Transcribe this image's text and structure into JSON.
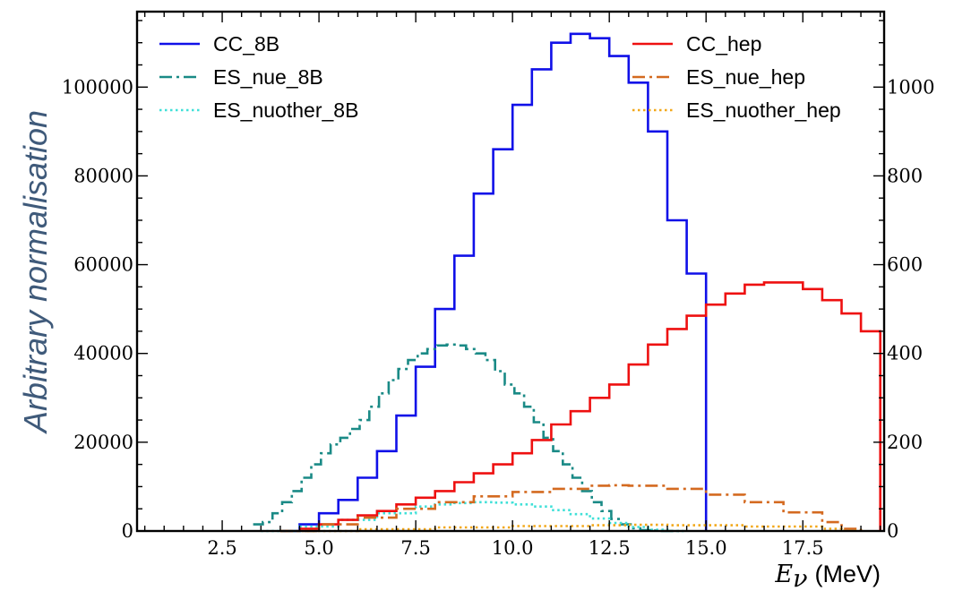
{
  "chart_data": {
    "type": "line",
    "xlabel": "E_ν (MeV)",
    "xlabel_symbol": "E",
    "xlabel_sub": "ν",
    "xlabel_unit": "(MeV)",
    "ylabel": "Arbitrary normalisation",
    "xlim": [
      0.3,
      19.6
    ],
    "ylim_left": [
      0,
      117000
    ],
    "ylim_right": [
      0,
      1170
    ],
    "x_ticks": [
      2.5,
      5.0,
      7.5,
      10.0,
      12.5,
      15.0,
      17.5
    ],
    "x_tick_labels": [
      "2.5",
      "5.0",
      "7.5",
      "10.0",
      "12.5",
      "15.0",
      "17.5"
    ],
    "y_ticks_left": [
      0,
      20000,
      40000,
      60000,
      80000,
      100000
    ],
    "y_tick_labels_left": [
      "0",
      "20000",
      "40000",
      "60000",
      "80000",
      "100000"
    ],
    "y_ticks_right": [
      0,
      200,
      400,
      600,
      800,
      1000
    ],
    "y_tick_labels_right": [
      "0",
      "200",
      "400",
      "600",
      "800",
      "1000"
    ],
    "grid": false,
    "legend_left": "top-left",
    "legend_right": "top-right",
    "series": [
      {
        "name": "CC_8B",
        "axis": "left",
        "color": "#1010e8",
        "dash": "solid",
        "x": [
          4.0,
          4.5,
          5.0,
          5.5,
          6.0,
          6.5,
          7.0,
          7.5,
          8.0,
          8.5,
          9.0,
          9.5,
          10.0,
          10.5,
          11.0,
          11.5,
          12.0,
          12.5,
          13.0,
          13.5,
          14.0,
          14.5
        ],
        "values": [
          0,
          1500,
          4000,
          7000,
          12000,
          18000,
          26000,
          37000,
          50000,
          62000,
          76000,
          86000,
          96000,
          104000,
          110000,
          112000,
          111000,
          107000,
          101000,
          90000,
          70000,
          58000
        ]
      },
      {
        "name": "ES_nue_8B",
        "axis": "left",
        "color": "#1a8a86",
        "dash": "dashdot",
        "x": [
          3.3,
          3.55,
          3.8,
          4.05,
          4.3,
          4.55,
          4.8,
          5.05,
          5.3,
          5.55,
          5.8,
          6.05,
          6.3,
          6.55,
          6.8,
          7.05,
          7.3,
          7.55,
          7.8,
          8.05,
          8.3,
          8.55,
          8.8,
          9.05,
          9.3,
          9.55,
          9.8,
          10.05,
          10.3,
          10.55,
          10.8,
          11.05,
          11.3,
          11.55,
          11.8,
          12.05,
          12.3,
          12.55,
          12.8,
          13.05,
          13.3,
          13.55,
          13.8,
          14.05
        ],
        "values": [
          1500,
          2000,
          4000,
          6500,
          9000,
          12000,
          15000,
          17500,
          19500,
          21000,
          23000,
          25000,
          28000,
          31000,
          34000,
          36500,
          38500,
          40000,
          41000,
          41800,
          42000,
          41800,
          41000,
          40000,
          38500,
          36000,
          33000,
          31000,
          28000,
          24500,
          21000,
          18000,
          15000,
          12000,
          9000,
          6500,
          4500,
          2700,
          1500,
          600,
          200,
          100,
          0,
          0
        ]
      },
      {
        "name": "ES_nuother_8B",
        "axis": "left",
        "color": "#40e0d8",
        "dash": "dotted",
        "x": [
          3.5,
          4.5,
          5.5,
          6.5,
          7.5,
          8.0,
          8.5,
          9.0,
          9.5,
          10.0,
          10.5,
          11.0,
          11.5,
          12.0,
          12.5,
          13.0,
          13.5,
          14.0
        ],
        "values": [
          0,
          1000,
          2500,
          4000,
          5500,
          6000,
          6300,
          6500,
          6400,
          6000,
          5500,
          4700,
          3800,
          2800,
          1800,
          900,
          300,
          0
        ]
      },
      {
        "name": "CC_hep",
        "axis": "right",
        "color": "#ee1010",
        "dash": "solid",
        "x": [
          4.5,
          5.0,
          5.5,
          6.0,
          6.5,
          7.0,
          7.5,
          8.0,
          8.5,
          9.0,
          9.5,
          10.0,
          10.5,
          11.0,
          11.5,
          12.0,
          12.5,
          13.0,
          13.5,
          14.0,
          14.5,
          15.0,
          15.5,
          16.0,
          16.5,
          17.0,
          17.5,
          18.0,
          18.5,
          19.0
        ],
        "values": [
          5,
          15,
          25,
          35,
          45,
          60,
          75,
          90,
          110,
          130,
          150,
          175,
          205,
          240,
          270,
          300,
          330,
          375,
          420,
          455,
          485,
          510,
          535,
          555,
          560,
          560,
          545,
          520,
          490,
          450
        ]
      },
      {
        "name": "ES_nue_hep",
        "axis": "right",
        "color": "#d46a20",
        "dash": "dashdot",
        "x": [
          4.0,
          5.0,
          6.0,
          7.0,
          8.0,
          9.0,
          10.0,
          11.0,
          12.0,
          12.5,
          13.0,
          14.0,
          15.0,
          16.0,
          17.0,
          18.0,
          18.5
        ],
        "values": [
          0,
          15,
          30,
          50,
          65,
          78,
          88,
          95,
          102,
          103,
          102,
          95,
          82,
          65,
          42,
          20,
          5
        ]
      },
      {
        "name": "ES_nuother_hep",
        "axis": "right",
        "color": "#f2a81a",
        "dash": "dotted",
        "x": [
          4.0,
          6.0,
          8.0,
          10.0,
          12.0,
          13.0,
          14.0,
          16.0,
          18.0,
          18.5
        ],
        "values": [
          0,
          4,
          8,
          11,
          13,
          14,
          13,
          10,
          5,
          1
        ]
      }
    ]
  }
}
